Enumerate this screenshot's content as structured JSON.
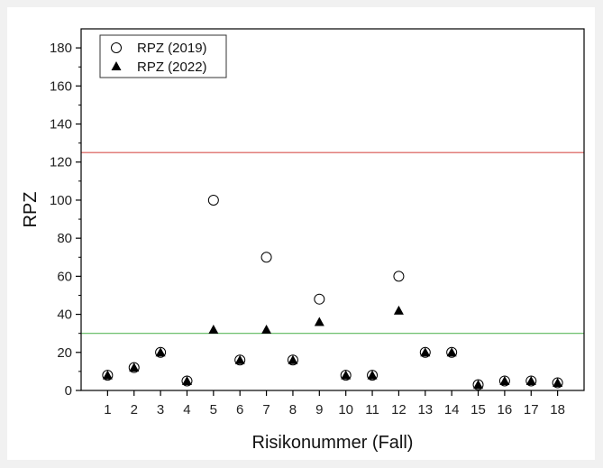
{
  "chart_data": {
    "type": "scatter",
    "title": "",
    "xlabel": "Risikonummer (Fall)",
    "ylabel": "RPZ",
    "xlim": [
      0,
      19
    ],
    "ylim": [
      0,
      190
    ],
    "x": [
      1,
      2,
      3,
      4,
      5,
      6,
      7,
      8,
      9,
      10,
      11,
      12,
      13,
      14,
      15,
      16,
      17,
      18
    ],
    "x_tick_labels": [
      "1",
      "2",
      "3",
      "4",
      "5",
      "6",
      "7",
      "8",
      "9",
      "10",
      "11",
      "12",
      "13",
      "14",
      "15",
      "16",
      "17",
      "18"
    ],
    "y_ticks": [
      0,
      20,
      40,
      60,
      80,
      100,
      120,
      140,
      160,
      180
    ],
    "y_tick_labels": [
      "0",
      "20",
      "40",
      "60",
      "80",
      "100",
      "120",
      "140",
      "160",
      "180"
    ],
    "series": [
      {
        "name": "RPZ (2019)",
        "marker": "open-circle",
        "color": "#000000",
        "values": [
          8,
          12,
          20,
          5,
          100,
          16,
          70,
          16,
          48,
          8,
          8,
          60,
          20,
          20,
          3,
          5,
          5,
          4
        ]
      },
      {
        "name": "RPZ (2022)",
        "marker": "filled-triangle",
        "color": "#000000",
        "values": [
          8,
          12,
          20,
          5,
          32,
          16,
          32,
          16,
          36,
          8,
          8,
          42,
          20,
          20,
          3,
          5,
          5,
          4
        ]
      }
    ],
    "reference_lines": [
      {
        "y": 125,
        "color": "#d9534f"
      },
      {
        "y": 30,
        "color": "#5cb85c"
      }
    ],
    "grid": false,
    "legend_position": "top-left"
  }
}
